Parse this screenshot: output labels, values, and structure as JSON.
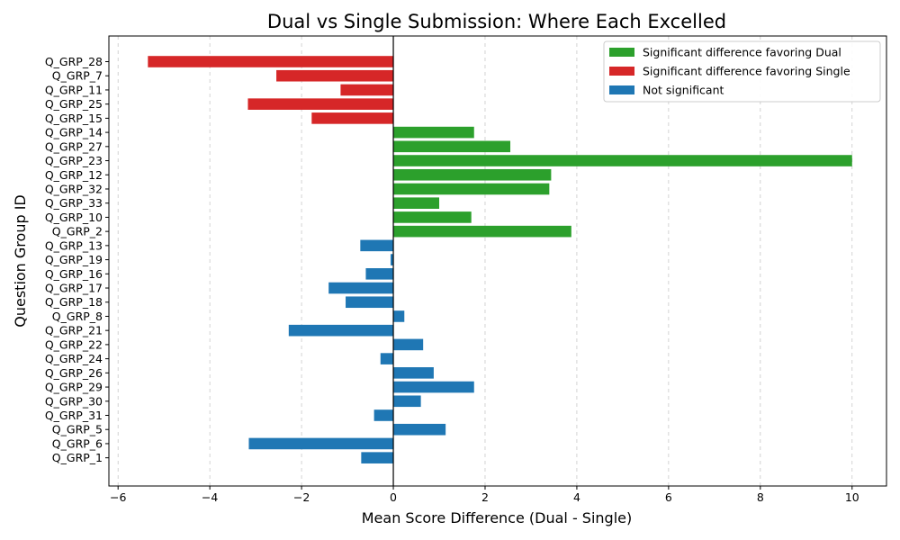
{
  "chart_data": {
    "type": "bar",
    "orientation": "horizontal",
    "title": "Dual vs Single Submission: Where Each Excelled",
    "xlabel": "Mean Score Difference (Dual - Single)",
    "ylabel": "Question Group ID",
    "xlim": [
      -6.2,
      10.75
    ],
    "xticks": [
      -6,
      -4,
      -2,
      0,
      2,
      4,
      6,
      8,
      10
    ],
    "grid": "vertical-dashed",
    "legend_placement": "top-right",
    "colors": {
      "dual": "#2ca02c",
      "single": "#d62728",
      "ns": "#1f77b4"
    },
    "legend": [
      {
        "key": "dual",
        "label": "Significant difference favoring Dual"
      },
      {
        "key": "single",
        "label": "Significant difference favoring Single"
      },
      {
        "key": "ns",
        "label": "Not significant"
      }
    ],
    "bars": [
      {
        "category": "Q_GRP_28",
        "value": -5.35,
        "group": "single"
      },
      {
        "category": "Q_GRP_7",
        "value": -2.55,
        "group": "single"
      },
      {
        "category": "Q_GRP_11",
        "value": -1.15,
        "group": "single"
      },
      {
        "category": "Q_GRP_25",
        "value": -3.17,
        "group": "single"
      },
      {
        "category": "Q_GRP_15",
        "value": -1.78,
        "group": "single"
      },
      {
        "category": "Q_GRP_14",
        "value": 1.76,
        "group": "dual"
      },
      {
        "category": "Q_GRP_27",
        "value": 2.55,
        "group": "dual"
      },
      {
        "category": "Q_GRP_23",
        "value": 10.0,
        "group": "dual"
      },
      {
        "category": "Q_GRP_12",
        "value": 3.44,
        "group": "dual"
      },
      {
        "category": "Q_GRP_32",
        "value": 3.4,
        "group": "dual"
      },
      {
        "category": "Q_GRP_33",
        "value": 1.0,
        "group": "dual"
      },
      {
        "category": "Q_GRP_10",
        "value": 1.7,
        "group": "dual"
      },
      {
        "category": "Q_GRP_2",
        "value": 3.88,
        "group": "dual"
      },
      {
        "category": "Q_GRP_13",
        "value": -0.72,
        "group": "ns"
      },
      {
        "category": "Q_GRP_19",
        "value": -0.06,
        "group": "ns"
      },
      {
        "category": "Q_GRP_16",
        "value": -0.6,
        "group": "ns"
      },
      {
        "category": "Q_GRP_17",
        "value": -1.41,
        "group": "ns"
      },
      {
        "category": "Q_GRP_18",
        "value": -1.04,
        "group": "ns"
      },
      {
        "category": "Q_GRP_8",
        "value": 0.24,
        "group": "ns"
      },
      {
        "category": "Q_GRP_21",
        "value": -2.28,
        "group": "ns"
      },
      {
        "category": "Q_GRP_22",
        "value": 0.65,
        "group": "ns"
      },
      {
        "category": "Q_GRP_24",
        "value": -0.28,
        "group": "ns"
      },
      {
        "category": "Q_GRP_26",
        "value": 0.88,
        "group": "ns"
      },
      {
        "category": "Q_GRP_29",
        "value": 1.76,
        "group": "ns"
      },
      {
        "category": "Q_GRP_30",
        "value": 0.6,
        "group": "ns"
      },
      {
        "category": "Q_GRP_31",
        "value": -0.42,
        "group": "ns"
      },
      {
        "category": "Q_GRP_5",
        "value": 1.14,
        "group": "ns"
      },
      {
        "category": "Q_GRP_6",
        "value": -3.15,
        "group": "ns"
      },
      {
        "category": "Q_GRP_1",
        "value": -0.7,
        "group": "ns"
      }
    ]
  }
}
